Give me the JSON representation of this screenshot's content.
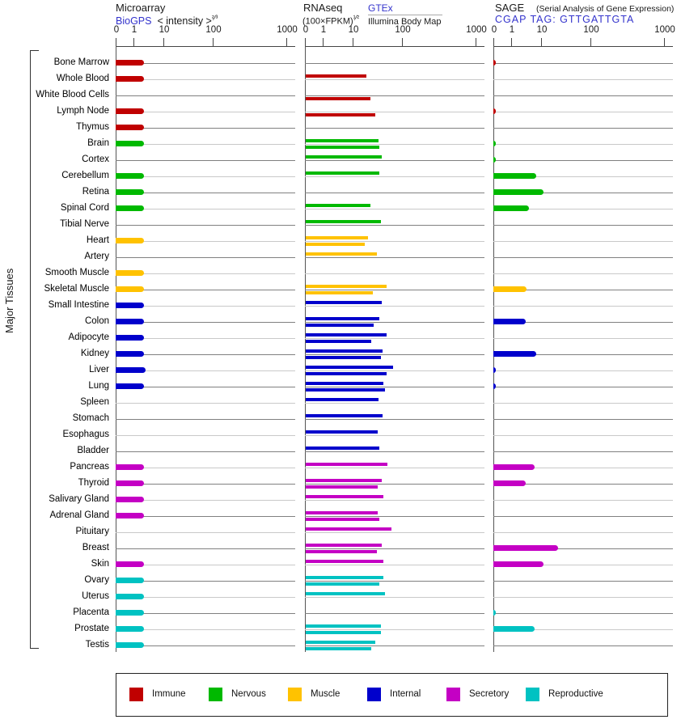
{
  "header": {
    "microarray": {
      "title": "Microarray",
      "link": "BioGPS",
      "scale_note": "< intensity >",
      "scale_exponent": "²⁄³"
    },
    "rnaseq": {
      "title": "RNAseq",
      "formula": "(100×FPKM)",
      "formula_exponent": "¹⁄²",
      "source_top": "GTEx",
      "source_bottom": "Illumina Body Map"
    },
    "sage": {
      "title": "SAGE",
      "note": "(Serial Analysis of Gene Expression)",
      "link": "CGAP TAG: GTTGATTGTA"
    }
  },
  "axis_ticks": [
    "0",
    "1",
    "10",
    "100",
    "1000"
  ],
  "side_label": "Major Tissues",
  "legend": [
    {
      "label": "Immune",
      "color": "#C00000"
    },
    {
      "label": "Nervous",
      "color": "#00B900"
    },
    {
      "label": "Muscle",
      "color": "#FFC200"
    },
    {
      "label": "Internal",
      "color": "#0000CC"
    },
    {
      "label": "Secretory",
      "color": "#C400C4"
    },
    {
      "label": "Reproductive",
      "color": "#00C2C2"
    }
  ],
  "chart_data": {
    "type": "bar",
    "orientation": "horizontal",
    "axis_scale": "nonlinear expression scale with ticks 0, 1, 10, 100, 1000",
    "axis_range": [
      0,
      1000
    ],
    "series": [
      "Microarray (BioGPS)",
      "RNAseq GTEx",
      "RNAseq Illumina Body Map",
      "SAGE (CGAP)"
    ],
    "rows": [
      {
        "tissue": "Bone Marrow",
        "group": "Immune",
        "microarray": 2.2,
        "gtex": null,
        "illumina": null,
        "sage": 0.15
      },
      {
        "tissue": "Whole Blood",
        "group": "Immune",
        "microarray": 2.2,
        "gtex": 18,
        "illumina": null,
        "sage": null
      },
      {
        "tissue": "White Blood Cells",
        "group": "Immune",
        "microarray": null,
        "gtex": null,
        "illumina": 22,
        "sage": null
      },
      {
        "tissue": "Lymph Node",
        "group": "Immune",
        "microarray": 2.2,
        "gtex": null,
        "illumina": 28,
        "sage": 0.15
      },
      {
        "tissue": "Thymus",
        "group": "Immune",
        "microarray": 2.2,
        "gtex": null,
        "illumina": null,
        "sage": null
      },
      {
        "tissue": "Brain",
        "group": "Nervous",
        "microarray": 2.2,
        "gtex": 32,
        "illumina": 33,
        "sage": 0.15
      },
      {
        "tissue": "Cortex",
        "group": "Nervous",
        "microarray": null,
        "gtex": 37,
        "illumina": null,
        "sage": 0.15
      },
      {
        "tissue": "Cerebellum",
        "group": "Nervous",
        "microarray": 2.2,
        "gtex": 34,
        "illumina": null,
        "sage": 7
      },
      {
        "tissue": "Retina",
        "group": "Nervous",
        "microarray": 2.2,
        "gtex": null,
        "illumina": null,
        "sage": 11
      },
      {
        "tissue": "Spinal Cord",
        "group": "Nervous",
        "microarray": 2.2,
        "gtex": 22,
        "illumina": null,
        "sage": 4
      },
      {
        "tissue": "Tibial Nerve",
        "group": "Nervous",
        "microarray": null,
        "gtex": 36,
        "illumina": null,
        "sage": null
      },
      {
        "tissue": "Heart",
        "group": "Muscle",
        "microarray": 2.2,
        "gtex": 20,
        "illumina": 17,
        "sage": null
      },
      {
        "tissue": "Artery",
        "group": "Muscle",
        "microarray": null,
        "gtex": 30,
        "illumina": null,
        "sage": null
      },
      {
        "tissue": "Smooth Muscle",
        "group": "Muscle",
        "microarray": 2.2,
        "gtex": null,
        "illumina": null,
        "sage": null
      },
      {
        "tissue": "Skeletal Muscle",
        "group": "Muscle",
        "microarray": 2.2,
        "gtex": 47,
        "illumina": 25,
        "sage": 3.3
      },
      {
        "tissue": "Small Intestine",
        "group": "Internal",
        "microarray": 2.2,
        "gtex": 37,
        "illumina": null,
        "sage": null
      },
      {
        "tissue": "Colon",
        "group": "Internal",
        "microarray": 2.2,
        "gtex": 33,
        "illumina": 26,
        "sage": 3.1
      },
      {
        "tissue": "Adipocyte",
        "group": "Internal",
        "microarray": 2.2,
        "gtex": 47,
        "illumina": 23,
        "sage": null
      },
      {
        "tissue": "Kidney",
        "group": "Internal",
        "microarray": 2.2,
        "gtex": 39,
        "illumina": 36,
        "sage": 7
      },
      {
        "tissue": "Liver",
        "group": "Internal",
        "microarray": 2.5,
        "gtex": 63,
        "illumina": 47,
        "sage": 0.1
      },
      {
        "tissue": "Lung",
        "group": "Internal",
        "microarray": 2.2,
        "gtex": 40,
        "illumina": 43,
        "sage": 0.1
      },
      {
        "tissue": "Spleen",
        "group": "Internal",
        "microarray": null,
        "gtex": 32,
        "illumina": null,
        "sage": null
      },
      {
        "tissue": "Stomach",
        "group": "Internal",
        "microarray": null,
        "gtex": 39,
        "illumina": null,
        "sage": null
      },
      {
        "tissue": "Esophagus",
        "group": "Internal",
        "microarray": null,
        "gtex": 31,
        "illumina": null,
        "sage": null
      },
      {
        "tissue": "Bladder",
        "group": "Internal",
        "microarray": null,
        "gtex": 33,
        "illumina": null,
        "sage": null
      },
      {
        "tissue": "Pancreas",
        "group": "Secretory",
        "microarray": 2.2,
        "gtex": 49,
        "illumina": null,
        "sage": 6
      },
      {
        "tissue": "Thyroid",
        "group": "Secretory",
        "microarray": 2.2,
        "gtex": 37,
        "illumina": 31,
        "sage": 3
      },
      {
        "tissue": "Salivary Gland",
        "group": "Secretory",
        "microarray": 2.2,
        "gtex": 40,
        "illumina": null,
        "sage": null
      },
      {
        "tissue": "Adrenal Gland",
        "group": "Secretory",
        "microarray": 2.2,
        "gtex": 31,
        "illumina": 33,
        "sage": null
      },
      {
        "tissue": "Pituitary",
        "group": "Secretory",
        "microarray": null,
        "gtex": 58,
        "illumina": null,
        "sage": null
      },
      {
        "tissue": "Breast",
        "group": "Secretory",
        "microarray": null,
        "gtex": 37,
        "illumina": 30,
        "sage": 22
      },
      {
        "tissue": "Skin",
        "group": "Secretory",
        "microarray": 2.2,
        "gtex": 40,
        "illumina": null,
        "sage": 11
      },
      {
        "tissue": "Ovary",
        "group": "Reproductive",
        "microarray": 2.2,
        "gtex": 40,
        "illumina": 33,
        "sage": null
      },
      {
        "tissue": "Uterus",
        "group": "Reproductive",
        "microarray": 2.2,
        "gtex": 43,
        "illumina": null,
        "sage": null
      },
      {
        "tissue": "Placenta",
        "group": "Reproductive",
        "microarray": 2.2,
        "gtex": null,
        "illumina": null,
        "sage": 0.15
      },
      {
        "tissue": "Prostate",
        "group": "Reproductive",
        "microarray": 2.2,
        "gtex": 36,
        "illumina": 36,
        "sage": 6
      },
      {
        "tissue": "Testis",
        "group": "Reproductive",
        "microarray": 2.2,
        "gtex": 28,
        "illumina": 23,
        "sage": null
      }
    ]
  }
}
